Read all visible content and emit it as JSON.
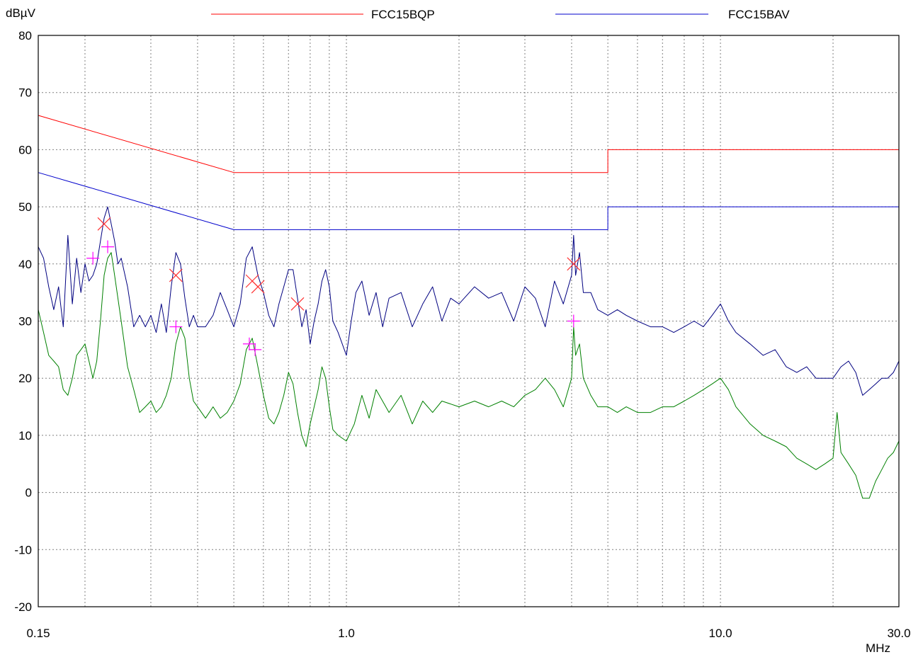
{
  "chart_data": {
    "type": "line",
    "x_scale": "log",
    "ylabel": "dBµV",
    "xlabel": "MHz",
    "xlim": [
      0.15,
      30.0
    ],
    "ylim": [
      -20,
      80
    ],
    "grid": true,
    "legend_position": "top",
    "colors": {
      "qp_limit": "#ff0000",
      "av_limit": "#0000cc",
      "peak_trace": "#000080",
      "avg_trace": "#008000",
      "qp_marker": "#ff3030",
      "av_marker": "#ff00ff"
    },
    "y_ticks": [
      "80",
      "70",
      "60",
      "50",
      "40",
      "30",
      "20",
      "10",
      "0",
      "-10",
      "-20"
    ],
    "y_tick_values": [
      80,
      70,
      60,
      50,
      40,
      30,
      20,
      10,
      0,
      -10,
      -20
    ],
    "x_ticks": [
      "0.15",
      "1.0",
      "10.0",
      "30.0"
    ],
    "x_tick_values": [
      0.15,
      1.0,
      10.0,
      30.0
    ],
    "series": [
      {
        "name": "FCC15BQP",
        "legend": true,
        "color": "#ff0000",
        "points": [
          [
            0.15,
            66
          ],
          [
            0.5,
            56
          ],
          [
            5.0,
            56
          ],
          [
            5.0,
            60
          ],
          [
            30.0,
            60
          ]
        ]
      },
      {
        "name": "FCC15BAV",
        "legend": true,
        "color": "#0000cc",
        "points": [
          [
            0.15,
            56
          ],
          [
            0.5,
            46
          ],
          [
            5.0,
            46
          ],
          [
            5.0,
            50
          ],
          [
            30.0,
            50
          ]
        ]
      },
      {
        "legend": false,
        "color": "#000080",
        "points": [
          [
            0.15,
            43
          ],
          [
            0.155,
            41
          ],
          [
            0.16,
            36
          ],
          [
            0.165,
            32
          ],
          [
            0.17,
            36
          ],
          [
            0.175,
            29
          ],
          [
            0.18,
            45
          ],
          [
            0.185,
            33
          ],
          [
            0.19,
            41
          ],
          [
            0.195,
            35
          ],
          [
            0.2,
            40
          ],
          [
            0.205,
            37
          ],
          [
            0.21,
            38
          ],
          [
            0.215,
            40
          ],
          [
            0.22,
            44
          ],
          [
            0.225,
            48
          ],
          [
            0.23,
            50
          ],
          [
            0.235,
            47
          ],
          [
            0.24,
            44
          ],
          [
            0.245,
            40
          ],
          [
            0.25,
            41
          ],
          [
            0.26,
            36
          ],
          [
            0.27,
            29
          ],
          [
            0.28,
            31
          ],
          [
            0.29,
            29
          ],
          [
            0.3,
            31
          ],
          [
            0.31,
            28
          ],
          [
            0.32,
            33
          ],
          [
            0.33,
            28
          ],
          [
            0.34,
            36
          ],
          [
            0.35,
            42
          ],
          [
            0.36,
            40
          ],
          [
            0.37,
            34
          ],
          [
            0.38,
            29
          ],
          [
            0.39,
            31
          ],
          [
            0.4,
            29
          ],
          [
            0.42,
            29
          ],
          [
            0.44,
            31
          ],
          [
            0.46,
            35
          ],
          [
            0.48,
            32
          ],
          [
            0.5,
            29
          ],
          [
            0.52,
            33
          ],
          [
            0.54,
            41
          ],
          [
            0.56,
            43
          ],
          [
            0.58,
            38
          ],
          [
            0.6,
            35
          ],
          [
            0.62,
            31
          ],
          [
            0.64,
            29
          ],
          [
            0.66,
            33
          ],
          [
            0.68,
            36
          ],
          [
            0.7,
            39
          ],
          [
            0.72,
            39
          ],
          [
            0.74,
            34
          ],
          [
            0.76,
            29
          ],
          [
            0.78,
            32
          ],
          [
            0.8,
            26
          ],
          [
            0.82,
            30
          ],
          [
            0.84,
            33
          ],
          [
            0.86,
            37
          ],
          [
            0.88,
            39
          ],
          [
            0.9,
            36
          ],
          [
            0.92,
            30
          ],
          [
            0.95,
            28
          ],
          [
            1.0,
            24
          ],
          [
            1.03,
            30
          ],
          [
            1.06,
            35
          ],
          [
            1.1,
            37
          ],
          [
            1.15,
            31
          ],
          [
            1.2,
            35
          ],
          [
            1.25,
            29
          ],
          [
            1.3,
            34
          ],
          [
            1.4,
            35
          ],
          [
            1.5,
            29
          ],
          [
            1.6,
            33
          ],
          [
            1.7,
            36
          ],
          [
            1.8,
            30
          ],
          [
            1.9,
            34
          ],
          [
            2.0,
            33
          ],
          [
            2.2,
            36
          ],
          [
            2.4,
            34
          ],
          [
            2.6,
            35
          ],
          [
            2.8,
            30
          ],
          [
            3.0,
            36
          ],
          [
            3.2,
            34
          ],
          [
            3.4,
            29
          ],
          [
            3.6,
            37
          ],
          [
            3.8,
            33
          ],
          [
            4.0,
            38
          ],
          [
            4.05,
            45
          ],
          [
            4.1,
            38
          ],
          [
            4.2,
            42
          ],
          [
            4.3,
            35
          ],
          [
            4.5,
            35
          ],
          [
            4.7,
            32
          ],
          [
            5.0,
            31
          ],
          [
            5.3,
            32
          ],
          [
            5.6,
            31
          ],
          [
            6.0,
            30
          ],
          [
            6.5,
            29
          ],
          [
            7.0,
            29
          ],
          [
            7.5,
            28
          ],
          [
            8.0,
            29
          ],
          [
            8.5,
            30
          ],
          [
            9.0,
            29
          ],
          [
            9.5,
            31
          ],
          [
            10.0,
            33
          ],
          [
            10.5,
            30
          ],
          [
            11.0,
            28
          ],
          [
            12.0,
            26
          ],
          [
            13.0,
            24
          ],
          [
            14.0,
            25
          ],
          [
            15.0,
            22
          ],
          [
            16.0,
            21
          ],
          [
            17.0,
            22
          ],
          [
            18.0,
            20
          ],
          [
            19.0,
            20
          ],
          [
            20.0,
            20
          ],
          [
            21.0,
            22
          ],
          [
            22.0,
            23
          ],
          [
            23.0,
            21
          ],
          [
            24.0,
            17
          ],
          [
            25.0,
            18
          ],
          [
            26.0,
            19
          ],
          [
            27.0,
            20
          ],
          [
            28.0,
            20
          ],
          [
            29.0,
            21
          ],
          [
            30.0,
            23
          ]
        ]
      },
      {
        "legend": false,
        "color": "#008000",
        "points": [
          [
            0.15,
            32
          ],
          [
            0.155,
            28
          ],
          [
            0.16,
            24
          ],
          [
            0.165,
            23
          ],
          [
            0.17,
            22
          ],
          [
            0.175,
            18
          ],
          [
            0.18,
            17
          ],
          [
            0.185,
            20
          ],
          [
            0.19,
            24
          ],
          [
            0.195,
            25
          ],
          [
            0.2,
            26
          ],
          [
            0.205,
            23
          ],
          [
            0.21,
            20
          ],
          [
            0.215,
            23
          ],
          [
            0.22,
            30
          ],
          [
            0.225,
            38
          ],
          [
            0.23,
            41
          ],
          [
            0.235,
            42
          ],
          [
            0.24,
            38
          ],
          [
            0.25,
            30
          ],
          [
            0.26,
            22
          ],
          [
            0.27,
            18
          ],
          [
            0.28,
            14
          ],
          [
            0.29,
            15
          ],
          [
            0.3,
            16
          ],
          [
            0.31,
            14
          ],
          [
            0.32,
            15
          ],
          [
            0.33,
            17
          ],
          [
            0.34,
            20
          ],
          [
            0.35,
            26
          ],
          [
            0.36,
            29
          ],
          [
            0.37,
            27
          ],
          [
            0.38,
            20
          ],
          [
            0.39,
            16
          ],
          [
            0.4,
            15
          ],
          [
            0.42,
            13
          ],
          [
            0.44,
            15
          ],
          [
            0.46,
            13
          ],
          [
            0.48,
            14
          ],
          [
            0.5,
            16
          ],
          [
            0.52,
            19
          ],
          [
            0.54,
            25
          ],
          [
            0.56,
            27
          ],
          [
            0.58,
            22
          ],
          [
            0.6,
            17
          ],
          [
            0.62,
            13
          ],
          [
            0.64,
            12
          ],
          [
            0.66,
            14
          ],
          [
            0.68,
            17
          ],
          [
            0.7,
            21
          ],
          [
            0.72,
            19
          ],
          [
            0.74,
            14
          ],
          [
            0.76,
            10
          ],
          [
            0.78,
            8
          ],
          [
            0.8,
            12
          ],
          [
            0.82,
            15
          ],
          [
            0.84,
            18
          ],
          [
            0.86,
            22
          ],
          [
            0.88,
            20
          ],
          [
            0.9,
            15
          ],
          [
            0.92,
            11
          ],
          [
            0.95,
            10
          ],
          [
            1.0,
            9
          ],
          [
            1.05,
            12
          ],
          [
            1.1,
            17
          ],
          [
            1.15,
            13
          ],
          [
            1.2,
            18
          ],
          [
            1.3,
            14
          ],
          [
            1.4,
            17
          ],
          [
            1.5,
            12
          ],
          [
            1.6,
            16
          ],
          [
            1.7,
            14
          ],
          [
            1.8,
            16
          ],
          [
            2.0,
            15
          ],
          [
            2.2,
            16
          ],
          [
            2.4,
            15
          ],
          [
            2.6,
            16
          ],
          [
            2.8,
            15
          ],
          [
            3.0,
            17
          ],
          [
            3.2,
            18
          ],
          [
            3.4,
            20
          ],
          [
            3.6,
            18
          ],
          [
            3.8,
            15
          ],
          [
            4.0,
            20
          ],
          [
            4.05,
            29
          ],
          [
            4.1,
            24
          ],
          [
            4.2,
            26
          ],
          [
            4.3,
            20
          ],
          [
            4.5,
            17
          ],
          [
            4.7,
            15
          ],
          [
            5.0,
            15
          ],
          [
            5.3,
            14
          ],
          [
            5.6,
            15
          ],
          [
            6.0,
            14
          ],
          [
            6.5,
            14
          ],
          [
            7.0,
            15
          ],
          [
            7.5,
            15
          ],
          [
            8.0,
            16
          ],
          [
            8.5,
            17
          ],
          [
            9.0,
            18
          ],
          [
            9.5,
            19
          ],
          [
            10.0,
            20
          ],
          [
            10.5,
            18
          ],
          [
            11.0,
            15
          ],
          [
            12.0,
            12
          ],
          [
            13.0,
            10
          ],
          [
            14.0,
            9
          ],
          [
            15.0,
            8
          ],
          [
            16.0,
            6
          ],
          [
            17.0,
            5
          ],
          [
            18.0,
            4
          ],
          [
            19.0,
            5
          ],
          [
            20.0,
            6
          ],
          [
            20.5,
            14
          ],
          [
            21.0,
            7
          ],
          [
            22.0,
            5
          ],
          [
            23.0,
            3
          ],
          [
            24.0,
            -1
          ],
          [
            25.0,
            -1
          ],
          [
            26.0,
            2
          ],
          [
            27.0,
            4
          ],
          [
            28.0,
            6
          ],
          [
            29.0,
            7
          ],
          [
            30.0,
            9
          ]
        ]
      }
    ],
    "markers": [
      {
        "type": "x",
        "color": "#ff3030",
        "points": [
          [
            0.225,
            47
          ],
          [
            0.35,
            38
          ],
          [
            0.56,
            37
          ],
          [
            0.58,
            36
          ],
          [
            0.74,
            33
          ],
          [
            4.05,
            40
          ]
        ]
      },
      {
        "type": "plus",
        "color": "#ff00ff",
        "points": [
          [
            0.21,
            41
          ],
          [
            0.23,
            43
          ],
          [
            0.35,
            29
          ],
          [
            0.55,
            26
          ],
          [
            0.57,
            25
          ],
          [
            4.05,
            30
          ]
        ]
      }
    ]
  }
}
